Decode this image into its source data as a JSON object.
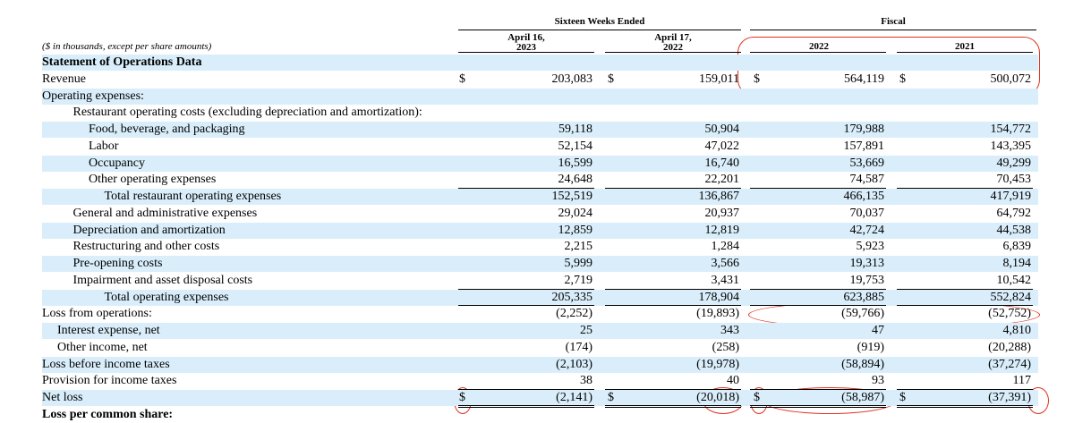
{
  "table": {
    "header": {
      "group1": "Sixteen Weeks Ended",
      "group2": "Fiscal",
      "units": "($ in thousands, except per share amounts)",
      "columns": [
        "April 16,\n2023",
        "April 17,\n2022",
        "2022",
        "2021"
      ]
    },
    "rows": [
      {
        "label": "Statement of Operations Data"
      },
      {
        "label": "Revenue",
        "currency": "$",
        "values": [
          "203,083",
          "159,011",
          "564,119",
          "500,072"
        ]
      },
      {
        "label": "Operating expenses:"
      },
      {
        "label": "Restaurant operating costs (excluding depreciation and amortization):"
      },
      {
        "label": "Food, beverage, and packaging",
        "values": [
          "59,118",
          "50,904",
          "179,988",
          "154,772"
        ]
      },
      {
        "label": "Labor",
        "values": [
          "52,154",
          "47,022",
          "157,891",
          "143,395"
        ]
      },
      {
        "label": "Occupancy",
        "values": [
          "16,599",
          "16,740",
          "53,669",
          "49,299"
        ]
      },
      {
        "label": "Other operating expenses",
        "values": [
          "24,648",
          "22,201",
          "74,587",
          "70,453"
        ]
      },
      {
        "label": "Total restaurant operating expenses",
        "values": [
          "152,519",
          "136,867",
          "466,135",
          "417,919"
        ]
      },
      {
        "label": "General and administrative expenses",
        "values": [
          "29,024",
          "20,937",
          "70,037",
          "64,792"
        ]
      },
      {
        "label": "Depreciation and amortization",
        "values": [
          "12,859",
          "12,819",
          "42,724",
          "44,538"
        ]
      },
      {
        "label": "Restructuring and other costs",
        "values": [
          "2,215",
          "1,284",
          "5,923",
          "6,839"
        ]
      },
      {
        "label": "Pre-opening costs",
        "values": [
          "5,999",
          "3,566",
          "19,313",
          "8,194"
        ]
      },
      {
        "label": "Impairment and asset disposal costs",
        "values": [
          "2,719",
          "3,431",
          "19,753",
          "10,542"
        ]
      },
      {
        "label": "Total operating expenses",
        "values": [
          "205,335",
          "178,904",
          "623,885",
          "552,824"
        ]
      },
      {
        "label": "Loss from operations:",
        "values": [
          "(2,252)",
          "(19,893)",
          "(59,766)",
          "(52,752)"
        ]
      },
      {
        "label": "Interest expense, net",
        "values": [
          "25",
          "343",
          "47",
          "4,810"
        ]
      },
      {
        "label": "Other income, net",
        "values": [
          "(174)",
          "(258)",
          "(919)",
          "(20,288)"
        ]
      },
      {
        "label": "Loss before income taxes",
        "values": [
          "(2,103)",
          "(19,978)",
          "(58,894)",
          "(37,274)"
        ]
      },
      {
        "label": "Provision for income taxes",
        "values": [
          "38",
          "40",
          "93",
          "117"
        ]
      },
      {
        "label": "Net loss",
        "currency": "$",
        "values": [
          "(2,141)",
          "(20,018)",
          "(58,987)",
          "(37,391)"
        ]
      },
      {
        "label": "Loss per common share:"
      }
    ]
  }
}
